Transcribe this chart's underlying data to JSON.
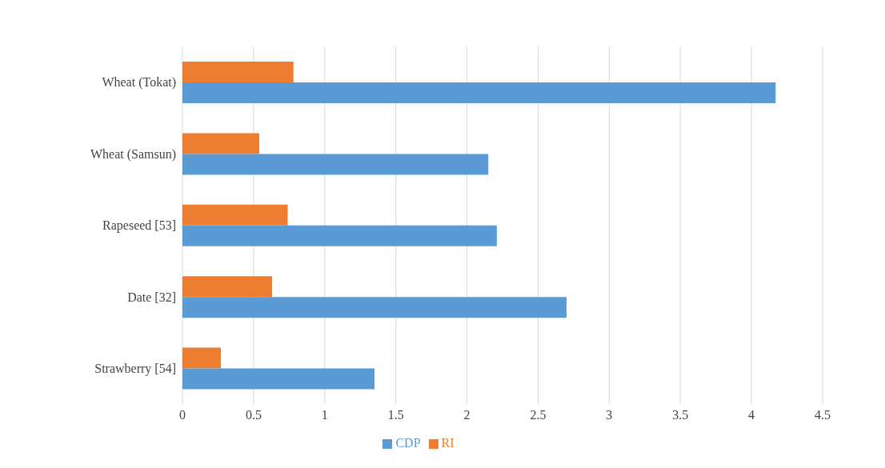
{
  "chart_data": {
    "type": "bar",
    "orientation": "horizontal",
    "categories": [
      "Wheat (Tokat)",
      "Wheat (Samsun)",
      "Rapeseed [53]",
      "Date [32]",
      "Strawberry [54]"
    ],
    "series": [
      {
        "name": "RI",
        "color": "#ed7d31",
        "values": [
          0.78,
          0.54,
          0.74,
          0.63,
          0.27
        ]
      },
      {
        "name": "CDP",
        "color": "#5b9bd5",
        "values": [
          4.17,
          2.15,
          2.21,
          2.7,
          1.35
        ]
      }
    ],
    "xlim": [
      0,
      4.5
    ],
    "xticks": [
      0,
      0.5,
      1,
      1.5,
      2,
      2.5,
      3,
      3.5,
      4,
      4.5
    ],
    "grid": "x",
    "legend": "bottom"
  }
}
